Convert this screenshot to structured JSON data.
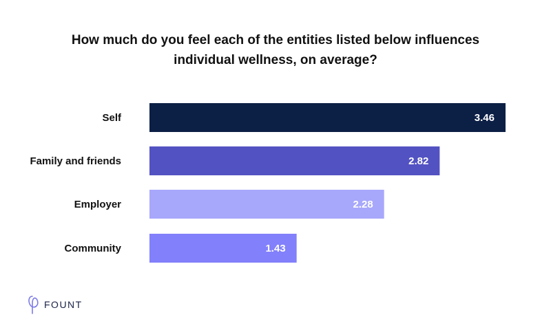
{
  "chart_data": {
    "type": "bar",
    "orientation": "horizontal",
    "title_lines": [
      "How much do you feel each of the entities listed below influences",
      "individual wellness, on average?"
    ],
    "categories": [
      "Self",
      "Family and friends",
      "Employer",
      "Community"
    ],
    "values": [
      3.46,
      2.82,
      2.28,
      1.43
    ],
    "value_labels": [
      "3.46",
      "2.82",
      "2.28",
      "1.43"
    ],
    "bar_colors": [
      "#0c1f45",
      "#5352c2",
      "#a7a7fc",
      "#8280fa"
    ],
    "xlim": [
      0,
      3.46
    ],
    "grid": false,
    "legend": "none"
  },
  "brand": {
    "name": "FOUNT",
    "color": "#1a2147",
    "mark_color": "#7b79e8"
  }
}
